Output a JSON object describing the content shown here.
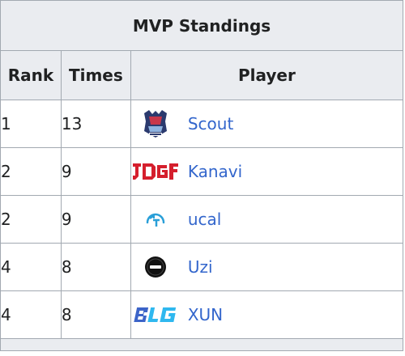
{
  "table": {
    "title": "MVP Standings",
    "headers": {
      "rank": "Rank",
      "times": "Times",
      "player": "Player"
    },
    "rows": [
      {
        "rank": "1",
        "times": "13",
        "player": "Scout",
        "logo": "edg-team-logo-icon"
      },
      {
        "rank": "2",
        "times": "9",
        "player": "Kanavi",
        "logo": "jdg-team-logo-icon"
      },
      {
        "rank": "2",
        "times": "9",
        "player": "ucal",
        "logo": "team-we-logo-icon"
      },
      {
        "rank": "4",
        "times": "8",
        "player": "Uzi",
        "logo": "edg-circle-logo-icon"
      },
      {
        "rank": "4",
        "times": "8",
        "player": "XUN",
        "logo": "blg-team-logo-icon"
      }
    ]
  },
  "colors": {
    "header_bg": "#eaecf0",
    "border": "#a2a9b1",
    "link": "#3366cc",
    "text": "#202122",
    "jdg_red": "#d51f2d",
    "blg_cyan": "#2fb8ef",
    "blg_blue": "#3c64c8"
  }
}
